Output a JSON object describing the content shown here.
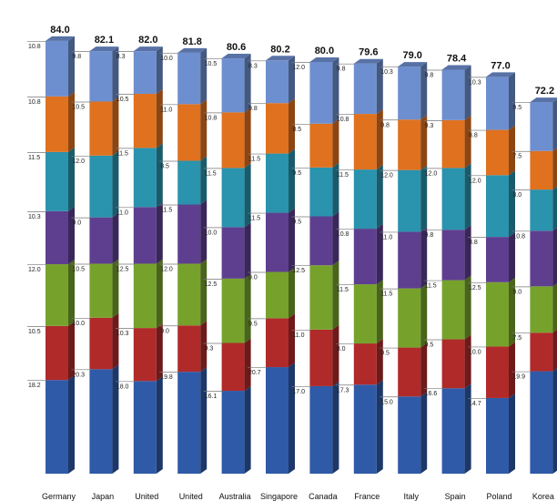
{
  "chart_data": {
    "type": "bar",
    "stacked": true,
    "title": "",
    "xlabel": "",
    "ylabel": "",
    "ylim": [
      0,
      84
    ],
    "grid": false,
    "legend": "none",
    "categories": [
      "Germany",
      "Japan",
      "United States",
      "United Kingdom",
      "Australia",
      "Singapore",
      "Canada",
      "France",
      "Italy",
      "Spain",
      "Poland",
      "Korea"
    ],
    "totals": [
      84.0,
      82.1,
      82.0,
      81.8,
      80.6,
      80.2,
      80.0,
      79.6,
      79.0,
      78.4,
      77.0,
      72.2
    ],
    "series": [
      {
        "color": "#2f5aa8",
        "values": [
          18.2,
          20.3,
          18.0,
          19.8,
          16.1,
          20.7,
          17.0,
          17.3,
          15.0,
          16.6,
          14.7,
          19.9
        ]
      },
      {
        "color": "#b02a2a",
        "values": [
          10.5,
          10.0,
          10.3,
          9.0,
          9.3,
          9.5,
          11.0,
          8.0,
          9.5,
          9.5,
          10.0,
          7.5
        ]
      },
      {
        "color": "#76a22c",
        "values": [
          12.0,
          10.5,
          12.5,
          12.0,
          12.5,
          9.0,
          12.5,
          11.5,
          11.5,
          11.5,
          12.5,
          9.0
        ]
      },
      {
        "color": "#5e3f8f",
        "values": [
          10.3,
          9.0,
          11.0,
          11.5,
          10.0,
          11.5,
          9.5,
          10.8,
          11.0,
          9.8,
          8.8,
          10.8
        ]
      },
      {
        "color": "#2a93ad",
        "values": [
          11.5,
          12.0,
          11.5,
          8.5,
          11.5,
          11.5,
          9.5,
          11.5,
          12.0,
          12.0,
          12.0,
          8.0
        ]
      },
      {
        "color": "#e0711e",
        "values": [
          10.8,
          10.5,
          10.5,
          11.0,
          10.8,
          9.8,
          8.5,
          10.8,
          9.8,
          9.3,
          8.8,
          7.5
        ]
      },
      {
        "color": "#6e8fcf",
        "values": [
          10.8,
          9.8,
          8.3,
          10.0,
          10.5,
          8.3,
          12.0,
          9.8,
          10.3,
          9.8,
          10.3,
          9.5
        ]
      }
    ]
  }
}
